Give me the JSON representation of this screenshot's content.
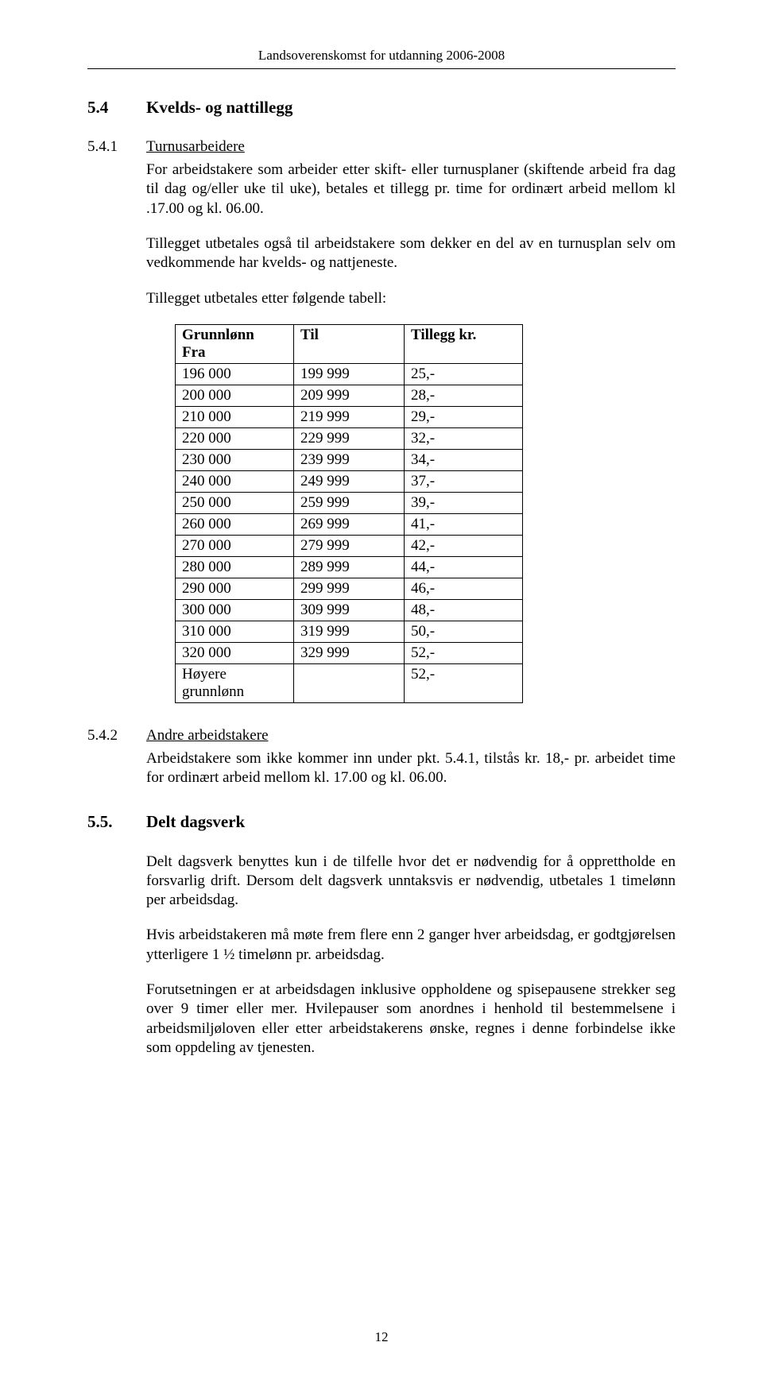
{
  "header": {
    "running_title": "Landsoverenskomst for utdanning 2006-2008"
  },
  "section_5_4": {
    "number": "5.4",
    "title": "Kvelds- og nattillegg"
  },
  "section_5_4_1": {
    "number": "5.4.1",
    "title": "Turnusarbeidere",
    "para1": "For arbeidstakere som arbeider etter skift- eller turnusplaner (skiftende arbeid fra dag til dag og/eller uke til uke), betales et tillegg pr. time for ordinært arbeid mellom kl .17.00 og kl. 06.00.",
    "para2": "Tillegget utbetales også til arbeidstakere som dekker en del av en turnusplan selv om vedkommende har kvelds- og nattjeneste.",
    "para3": "Tillegget utbetales etter følgende tabell:"
  },
  "table": {
    "headers": {
      "fra": "Grunnlønn Fra",
      "fra_line1": "Grunnlønn",
      "fra_line2": "Fra",
      "til": "Til",
      "tillegg": "Tillegg kr."
    },
    "rows": [
      {
        "fra": "196 000",
        "til": "199 999",
        "tillegg": "25,-"
      },
      {
        "fra": "200 000",
        "til": "209 999",
        "tillegg": "28,-"
      },
      {
        "fra": "210 000",
        "til": "219 999",
        "tillegg": "29,-"
      },
      {
        "fra": "220 000",
        "til": "229 999",
        "tillegg": "32,-"
      },
      {
        "fra": "230 000",
        "til": "239 999",
        "tillegg": "34,-"
      },
      {
        "fra": "240 000",
        "til": "249 999",
        "tillegg": "37,-"
      },
      {
        "fra": "250 000",
        "til": "259 999",
        "tillegg": "39,-"
      },
      {
        "fra": "260 000",
        "til": "269 999",
        "tillegg": "41,-"
      },
      {
        "fra": "270 000",
        "til": "279 999",
        "tillegg": "42,-"
      },
      {
        "fra": "280 000",
        "til": "289 999",
        "tillegg": "44,-"
      },
      {
        "fra": "290 000",
        "til": "299 999",
        "tillegg": "46,-"
      },
      {
        "fra": "300 000",
        "til": "309 999",
        "tillegg": "48,-"
      },
      {
        "fra": "310 000",
        "til": "319 999",
        "tillegg": "50,-"
      },
      {
        "fra": "320 000",
        "til": "329 999",
        "tillegg": "52,-"
      }
    ],
    "last_row": {
      "fra_line1": "Høyere",
      "fra_line2": "grunnlønn",
      "til": "",
      "tillegg": "52,-"
    }
  },
  "section_5_4_2": {
    "number": "5.4.2",
    "title": "Andre arbeidstakere",
    "para": "Arbeidstakere som ikke kommer inn under pkt. 5.4.1, tilstås kr. 18,- pr. arbeidet time for ordinært arbeid mellom kl. 17.00 og kl. 06.00."
  },
  "section_5_5": {
    "number": "5.5.",
    "title": "Delt dagsverk",
    "para1": "Delt dagsverk benyttes kun i de tilfelle hvor det er nødvendig for å opprettholde en forsvarlig drift. Dersom delt dagsverk unntaksvis er nødvendig, utbetales 1 timelønn per arbeidsdag.",
    "para2": "Hvis arbeidstakeren må møte frem flere enn 2 ganger hver arbeidsdag, er godtgjørelsen ytterligere 1 ½ timelønn pr. arbeidsdag.",
    "para3": "Forutsetningen er at arbeidsdagen inklusive oppholdene og spisepausene strekker seg over 9 timer eller mer. Hvilepauser som anordnes i henhold til bestemmelsene i arbeidsmiljøloven eller etter arbeidstakerens ønske, regnes i denne forbindelse ikke som oppdeling av tjenesten."
  },
  "footer": {
    "page_number": "12"
  }
}
